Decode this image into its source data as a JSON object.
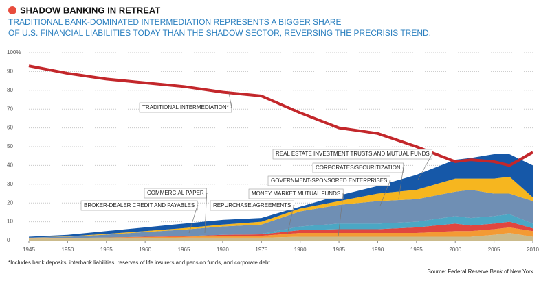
{
  "chart_data": {
    "type": "area",
    "title": "SHADOW BANKING IN RETREAT",
    "subtitle": [
      "TRADITIONAL BANK-DOMINATED INTERMEDIATION REPRESENTS A BIGGER SHARE",
      "OF U.S. FINANCIAL LIABILITIES TODAY THAN THE SHADOW SECTOR, REVERSING THE PRECRISIS TREND."
    ],
    "footnote": "*Includes bank deposits, interbank liabilities, reserves of life insurers and pension funds, and corporate debt.",
    "source": "Source: Federal Reserve Bank of New York.",
    "stacked": true,
    "grid": true,
    "x": [
      1945,
      1950,
      1955,
      1960,
      1965,
      1970,
      1975,
      1980,
      1985,
      1990,
      1995,
      2000,
      2002,
      2005,
      2007,
      2010
    ],
    "xlim": [
      1945,
      2010
    ],
    "xticks": [
      1945,
      1950,
      1955,
      1960,
      1965,
      1970,
      1975,
      1980,
      1985,
      1990,
      1995,
      2000,
      2005,
      2010
    ],
    "ylim": [
      0,
      100
    ],
    "yticks": [
      0,
      10,
      20,
      30,
      40,
      50,
      60,
      70,
      80,
      90,
      {
        "value": 100,
        "label": "100%"
      }
    ],
    "series": [
      {
        "name": "BROKER-DEALER CREDIT AND PAYABLES",
        "color": "#cbbb8c",
        "values": [
          1,
          1,
          1.2,
          1.3,
          1.5,
          1.5,
          1.5,
          2,
          2,
          2,
          2,
          2,
          2,
          3,
          4,
          2
        ]
      },
      {
        "name": "COMMERCIAL PAPER",
        "color": "#f39a34",
        "values": [
          0.3,
          0.3,
          0.4,
          0.5,
          0.5,
          1,
          1,
          2,
          2,
          2,
          2,
          3,
          3,
          3,
          3,
          3
        ]
      },
      {
        "name": "REPURCHASE AGREEMENTS",
        "color": "#e0463f",
        "values": [
          0,
          0,
          0,
          0.2,
          0.3,
          0.5,
          0.8,
          1.5,
          2,
          2,
          3,
          4,
          3,
          3,
          3,
          1.5
        ]
      },
      {
        "name": "MONEY MARKET MUTUAL FUNDS",
        "color": "#4ba7c4",
        "values": [
          0,
          0,
          0,
          0,
          0,
          0,
          0.2,
          2,
          3,
          3,
          3,
          4,
          4,
          4,
          4,
          2.5
        ]
      },
      {
        "name": "GOVERNMENT-SPONSORED ENTERPRISES",
        "color": "#6f8fb4",
        "values": [
          0.3,
          0.7,
          1.5,
          2.5,
          3.5,
          4.5,
          5,
          8,
          10,
          12,
          12,
          13,
          15,
          12,
          11,
          12
        ]
      },
      {
        "name": "CORPORATES/SECURITIZATION",
        "color": "#f6b61f",
        "values": [
          0,
          0.2,
          0.4,
          0.5,
          0.8,
          1,
          1.5,
          1.5,
          2,
          4,
          5,
          7,
          6,
          8,
          9,
          2
        ]
      },
      {
        "name": "REAL ESTATE INVESTMENT TRUSTS AND MUTUAL FUNDS",
        "color": "#1658a8",
        "values": [
          0.4,
          0.8,
          1.5,
          2,
          2.4,
          2.5,
          2,
          1,
          3,
          4,
          8,
          10,
          11,
          13,
          12,
          17
        ]
      },
      {
        "name": "TRADITIONAL INTERMEDIATION*",
        "type": "line",
        "color": "#c3272b",
        "values": [
          93,
          89,
          86,
          84,
          82,
          79,
          77,
          68,
          60,
          57,
          50,
          42,
          43,
          42,
          40,
          47
        ]
      }
    ]
  }
}
